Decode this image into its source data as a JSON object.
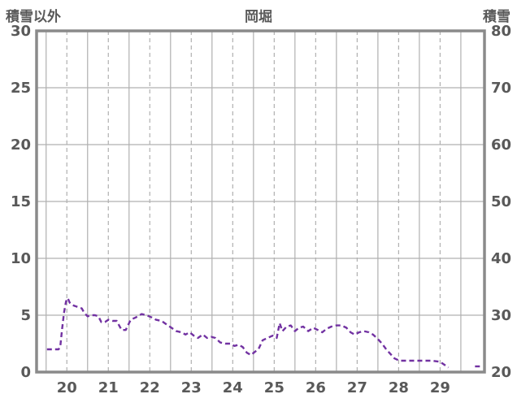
{
  "header": {
    "left_axis_title": "積雪以外",
    "title": "岡堀",
    "right_axis_title": "積雪"
  },
  "style": {
    "text_color": "#595959",
    "border_color": "#8a8a8a",
    "grid_color": "#b0b0b0",
    "background": "#ffffff"
  },
  "chart_data": {
    "type": "line",
    "title": "岡堀",
    "legend": "none",
    "grid": "on",
    "left_axis": {
      "label": "積雪以外",
      "min": 0,
      "max": 30,
      "ticks": [
        30,
        25,
        20,
        15,
        10,
        5,
        0
      ]
    },
    "right_axis": {
      "label": "積雪",
      "min": 20,
      "max": 80,
      "ticks": [
        80,
        70,
        60,
        50,
        40,
        30,
        20
      ]
    },
    "x_axis": {
      "labels": [
        "20",
        "21",
        "22",
        "23",
        "24",
        "25",
        "26",
        "27",
        "28",
        "29"
      ],
      "label_days": [
        20.5,
        21.5,
        22.5,
        23.5,
        24.5,
        25.5,
        26.5,
        27.5,
        28.5,
        29.5
      ],
      "midnight_days": [
        20,
        21,
        22,
        23,
        24,
        25,
        26,
        27,
        28,
        29,
        30
      ],
      "min_day": 19.77,
      "max_day": 30.57
    },
    "series": [
      {
        "name": "積雪以外",
        "color": "#7232a2",
        "line_style": "dashed",
        "points": [
          [
            20.02,
            2.0
          ],
          [
            20.12,
            2.0
          ],
          [
            20.22,
            2.0
          ],
          [
            20.3,
            2.0
          ],
          [
            20.34,
            2.2
          ],
          [
            20.38,
            3.6
          ],
          [
            20.43,
            5.2
          ],
          [
            20.48,
            6.2
          ],
          [
            20.52,
            6.5
          ],
          [
            20.57,
            6.1
          ],
          [
            20.63,
            5.9
          ],
          [
            20.7,
            5.8
          ],
          [
            20.78,
            5.7
          ],
          [
            20.86,
            5.6
          ],
          [
            20.92,
            5.2
          ],
          [
            21.0,
            4.9
          ],
          [
            21.08,
            5.0
          ],
          [
            21.18,
            5.0
          ],
          [
            21.26,
            4.9
          ],
          [
            21.33,
            4.4
          ],
          [
            21.42,
            4.4
          ],
          [
            21.5,
            4.6
          ],
          [
            21.6,
            4.5
          ],
          [
            21.7,
            4.5
          ],
          [
            21.82,
            3.7
          ],
          [
            21.92,
            3.7
          ],
          [
            22.04,
            4.6
          ],
          [
            22.16,
            4.8
          ],
          [
            22.3,
            5.1
          ],
          [
            22.42,
            5.0
          ],
          [
            22.55,
            4.8
          ],
          [
            22.65,
            4.6
          ],
          [
            22.78,
            4.5
          ],
          [
            22.9,
            4.2
          ],
          [
            23.02,
            3.9
          ],
          [
            23.14,
            3.6
          ],
          [
            23.26,
            3.5
          ],
          [
            23.36,
            3.3
          ],
          [
            23.46,
            3.5
          ],
          [
            23.56,
            3.2
          ],
          [
            23.66,
            3.0
          ],
          [
            23.78,
            3.3
          ],
          [
            23.88,
            3.0
          ],
          [
            23.98,
            3.1
          ],
          [
            24.08,
            3.0
          ],
          [
            24.2,
            2.6
          ],
          [
            24.32,
            2.5
          ],
          [
            24.44,
            2.5
          ],
          [
            24.54,
            2.3
          ],
          [
            24.64,
            2.4
          ],
          [
            24.74,
            2.2
          ],
          [
            24.84,
            1.7
          ],
          [
            24.94,
            1.5
          ],
          [
            25.04,
            1.8
          ],
          [
            25.12,
            2.0
          ],
          [
            25.22,
            2.8
          ],
          [
            25.34,
            3.0
          ],
          [
            25.46,
            3.2
          ],
          [
            25.56,
            3.0
          ],
          [
            25.63,
            4.3
          ],
          [
            25.7,
            3.6
          ],
          [
            25.8,
            4.0
          ],
          [
            25.9,
            4.1
          ],
          [
            26.0,
            3.6
          ],
          [
            26.1,
            3.9
          ],
          [
            26.2,
            4.0
          ],
          [
            26.32,
            3.6
          ],
          [
            26.44,
            3.9
          ],
          [
            26.55,
            3.7
          ],
          [
            26.66,
            3.5
          ],
          [
            26.76,
            3.8
          ],
          [
            26.88,
            4.0
          ],
          [
            27.0,
            4.1
          ],
          [
            27.12,
            4.1
          ],
          [
            27.24,
            3.9
          ],
          [
            27.34,
            3.5
          ],
          [
            27.44,
            3.3
          ],
          [
            27.55,
            3.5
          ],
          [
            27.66,
            3.6
          ],
          [
            27.78,
            3.5
          ],
          [
            27.88,
            3.3
          ],
          [
            28.0,
            2.9
          ],
          [
            28.1,
            2.5
          ],
          [
            28.2,
            2.0
          ],
          [
            28.3,
            1.6
          ],
          [
            28.4,
            1.2
          ],
          [
            28.52,
            1.0
          ],
          [
            28.65,
            1.0
          ],
          [
            28.8,
            1.0
          ],
          [
            28.95,
            1.0
          ],
          [
            29.1,
            1.0
          ],
          [
            29.3,
            1.0
          ],
          [
            29.5,
            0.9
          ],
          [
            29.7,
            0.4
          ],
          [
            30.4,
            0.5
          ]
        ]
      }
    ]
  }
}
